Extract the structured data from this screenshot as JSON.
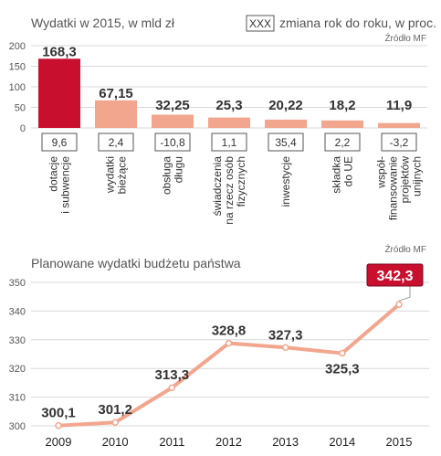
{
  "chart_data": [
    {
      "type": "bar",
      "title": "Wydatki w 2015, w mld zł",
      "legend_box": "XXX",
      "legend_label": "zmiana rok do roku, w proc.",
      "source": "Źródło MF",
      "categories": [
        [
          "dotacje",
          "i subwencje"
        ],
        [
          "wydatki",
          "bieżące"
        ],
        [
          "obsługa",
          "długu"
        ],
        [
          "świadczenia",
          "na rzecz osób",
          "fizycznych"
        ],
        [
          "inwestycje"
        ],
        [
          "składka",
          "do UE"
        ],
        [
          "współ-",
          "finansowanie",
          "projektów",
          "unijnych"
        ]
      ],
      "values": [
        168.3,
        67.15,
        32.25,
        25.3,
        20.22,
        18.2,
        11.9
      ],
      "value_labels": [
        "168,3",
        "67,15",
        "32,25",
        "25,3",
        "20,22",
        "18,2",
        "11,9"
      ],
      "changes": [
        "9,6",
        "2,4",
        "-10,8",
        "1,1",
        "35,4",
        "2,2",
        "-3,2"
      ],
      "yticks": [
        "200",
        "150",
        "100",
        "50",
        "0"
      ],
      "ylim": [
        0,
        200
      ],
      "highlight_index": 0,
      "colors": {
        "highlight": "#c8102e",
        "bar": "#f2a68d"
      }
    },
    {
      "type": "line",
      "title": "Planowane wydatki budżetu państwa",
      "source": "Źródło MF",
      "x": [
        "2009",
        "2010",
        "2011",
        "2012",
        "2013",
        "2014",
        "2015"
      ],
      "values": [
        300.1,
        301.2,
        313.3,
        328.8,
        327.3,
        325.3,
        342.3
      ],
      "value_labels": [
        "300,1",
        "301,2",
        "313,3",
        "328,8",
        "327,3",
        "325,3",
        "342,3"
      ],
      "yticks": [
        "350",
        "340",
        "330",
        "320",
        "310",
        "300"
      ],
      "ylim": [
        300,
        350
      ],
      "highlight_index": 6,
      "colors": {
        "line": "#f2a68d",
        "highlight": "#c8102e"
      }
    }
  ]
}
